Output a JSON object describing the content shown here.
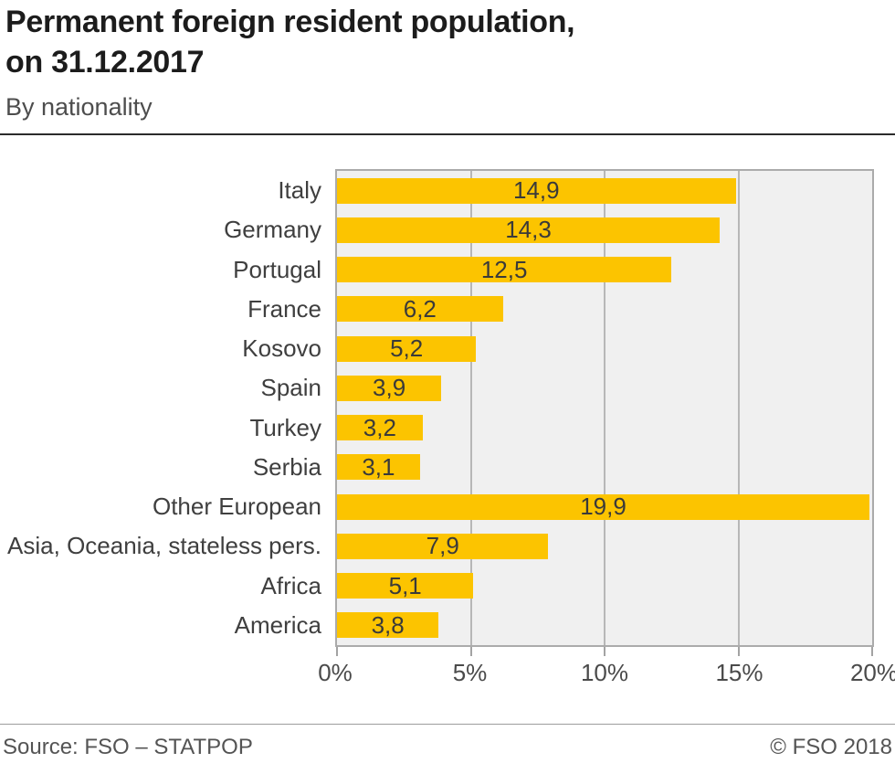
{
  "header": {
    "title": "Permanent foreign resident population,\non 31.12.2017",
    "subtitle": "By nationality"
  },
  "chart_data": {
    "type": "bar",
    "orientation": "horizontal",
    "title": "Permanent foreign resident population, on 31.12.2017",
    "subtitle": "By nationality",
    "xlabel": "",
    "ylabel": "",
    "categories": [
      "Italy",
      "Germany",
      "Portugal",
      "France",
      "Kosovo",
      "Spain",
      "Turkey",
      "Serbia",
      "Other European",
      "Asia, Oceania, stateless pers.",
      "Africa",
      "America"
    ],
    "values": [
      14.9,
      14.3,
      12.5,
      6.2,
      5.2,
      3.9,
      3.2,
      3.1,
      19.9,
      7.9,
      5.1,
      3.8
    ],
    "value_labels": [
      "14,9",
      "14,3",
      "12,5",
      "6,2",
      "5,2",
      "3,9",
      "3,2",
      "3,1",
      "19,9",
      "7,9",
      "5,1",
      "3,8"
    ],
    "xlim": [
      0,
      20
    ],
    "x_ticks": [
      0,
      5,
      10,
      15,
      20
    ],
    "x_tick_labels": [
      "0%",
      "5%",
      "10%",
      "15%",
      "20%"
    ],
    "grid": true,
    "gridline_positions": [
      5,
      10,
      15
    ],
    "legend": "none",
    "colors": {
      "bar": "#fcc400",
      "plot_background": "#f0f0f0",
      "gridline": "#b7b7b7",
      "tick": "#a3a3a3"
    }
  },
  "footer": {
    "source": "Source: FSO – STATPOP",
    "copyright": "© FSO 2018"
  }
}
